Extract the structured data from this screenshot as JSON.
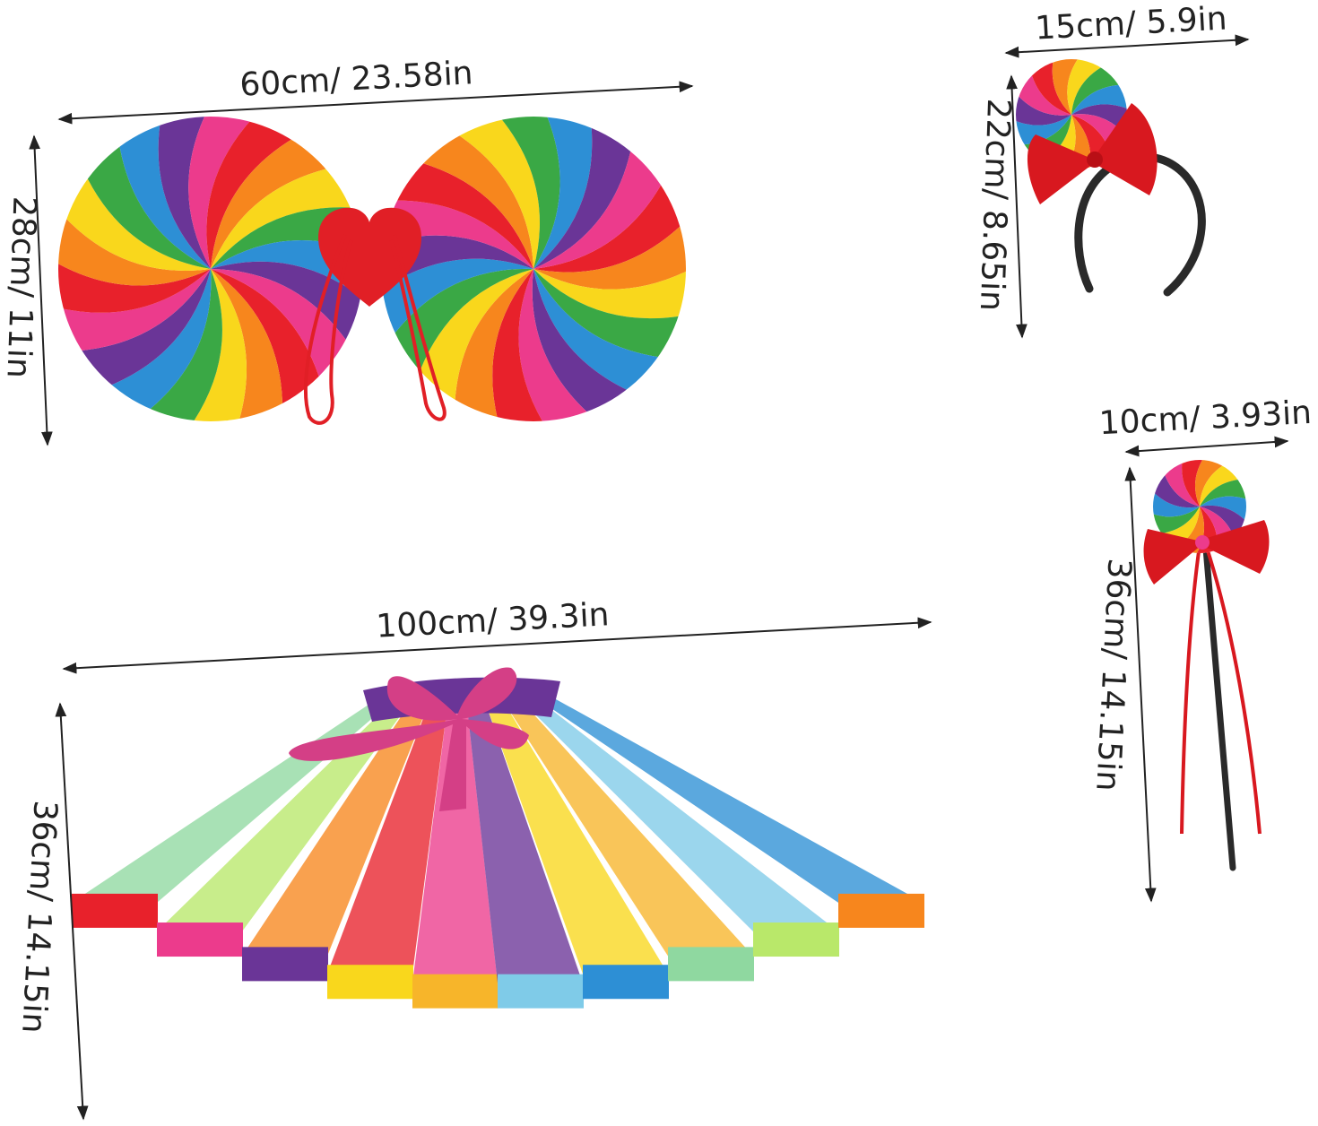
{
  "products": {
    "wings": {
      "width_label": "60cm/ 23.58in",
      "height_label": "28cm/ 11in"
    },
    "headband": {
      "width_label": "15cm/ 5.9in",
      "height_label": "22cm/ 8.65in"
    },
    "wand": {
      "width_label": "10cm/ 3.93in",
      "height_label": "36cm/ 14.15in"
    },
    "tutu": {
      "width_label": "100cm/ 39.3in",
      "height_label": "36cm/ 14.15in"
    }
  },
  "colors": {
    "rainbow": [
      "#e8212b",
      "#f7861d",
      "#f9d71c",
      "#3aa845",
      "#2d8fd5",
      "#6a3597",
      "#ec3b8c"
    ],
    "heart": "#e11f26",
    "bow": "#d8181f",
    "headband": "#2a2a2a",
    "tutu_waist": "#6a3597",
    "tutu_bow": "#d43f86",
    "arrow": "#222222"
  }
}
